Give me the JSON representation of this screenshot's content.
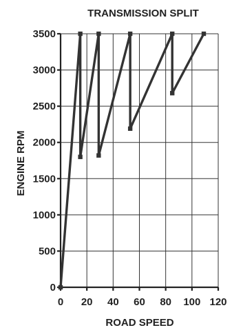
{
  "chart_data": {
    "type": "line",
    "title": "TRANSMISSION SPLIT",
    "xlabel": "ROAD SPEED",
    "ylabel": "ENGINE RPM",
    "xlim": [
      0,
      120
    ],
    "ylim": [
      0,
      3500
    ],
    "x_ticks": [
      0,
      20,
      40,
      60,
      80,
      100,
      120
    ],
    "x_tick_labels": [
      "0",
      "20",
      "40",
      "60",
      "80",
      "100",
      "120"
    ],
    "y_ticks": [
      0,
      500,
      1000,
      1500,
      2000,
      2500,
      3000,
      3500
    ],
    "y_tick_labels": [
      "0",
      "500",
      "1000",
      "1500",
      "2000",
      "2500",
      "3000",
      "3500"
    ],
    "grid": true,
    "legend": "none",
    "series": [
      {
        "x": [
          0,
          15,
          15,
          29,
          29,
          53,
          53,
          85,
          85,
          109
        ],
        "y": [
          0,
          3500,
          1800,
          3500,
          1820,
          3500,
          2190,
          3500,
          2680,
          3500
        ],
        "color": "#333333",
        "marker": "square"
      }
    ]
  }
}
